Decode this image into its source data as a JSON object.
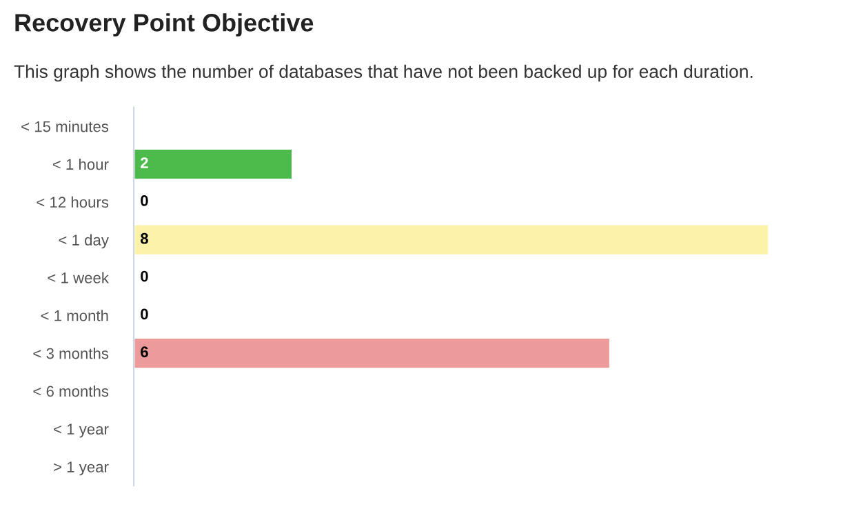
{
  "chart_data": {
    "type": "bar",
    "orientation": "horizontal",
    "title": "Recovery Point Objective",
    "subtitle": "This graph shows the number of databases that have not been backed up for each duration.",
    "categories": [
      "< 15 minutes",
      "< 1 hour",
      "< 12 hours",
      "< 1 day",
      "< 1 week",
      "< 1 month",
      "< 3 months",
      "< 6 months",
      "< 1 year",
      "> 1 year"
    ],
    "values": [
      null,
      2,
      0,
      8,
      0,
      0,
      6,
      null,
      null,
      null
    ],
    "colors": [
      null,
      "#4cbb4c",
      null,
      "#fdf2a9",
      null,
      null,
      "#ec9a9a",
      null,
      null,
      null
    ],
    "data_labels": true,
    "grid": false,
    "legend": false
  }
}
